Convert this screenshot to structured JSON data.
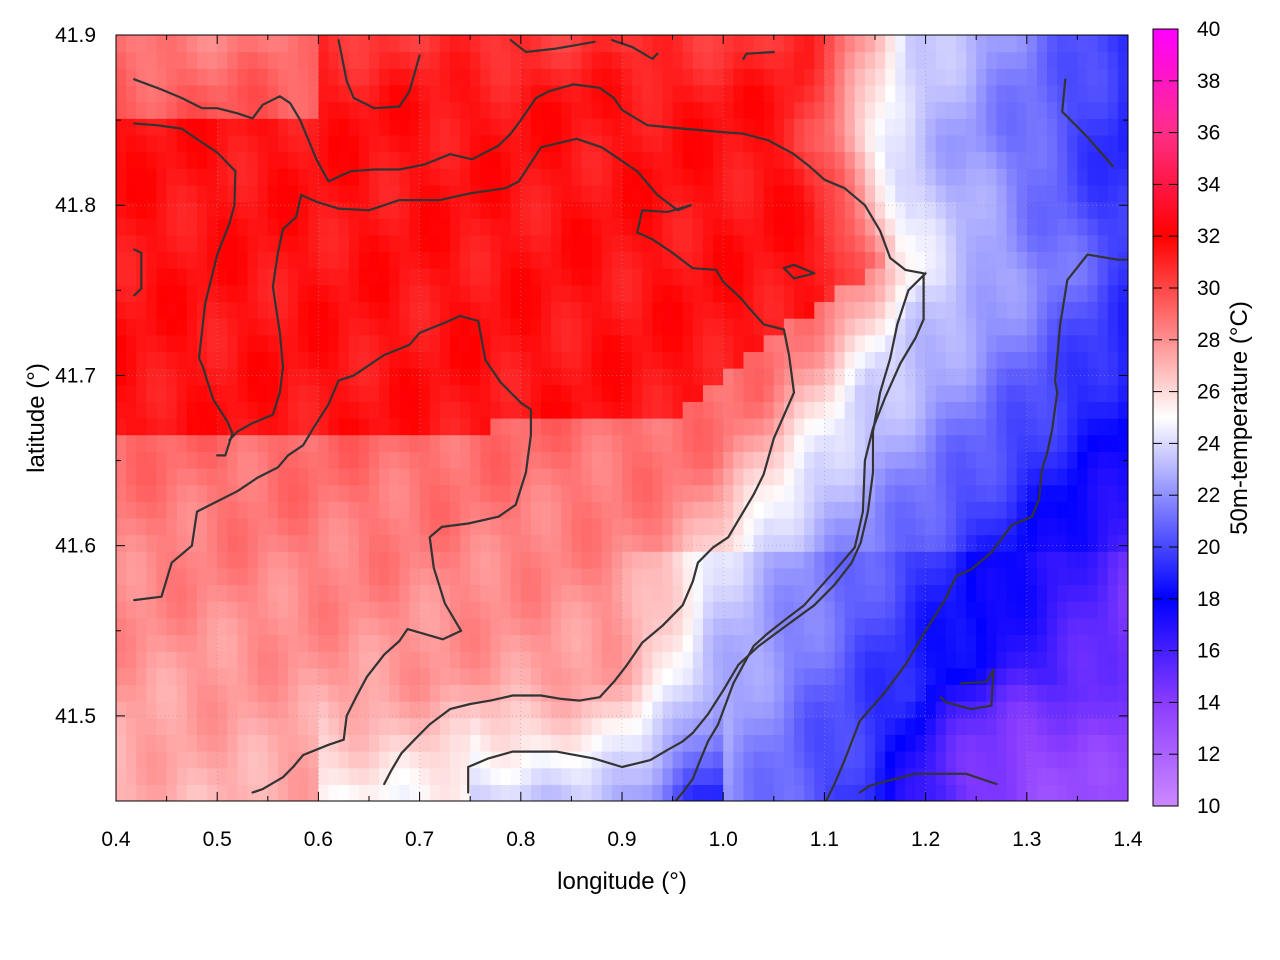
{
  "chart_data": {
    "type": "heatmap",
    "xlabel": "longitude (°)",
    "ylabel": "latitude (°)",
    "colorbar_label": "50m-temperature (°C)",
    "xlim": [
      0.4,
      1.4
    ],
    "ylim": [
      41.45,
      41.9
    ],
    "x_ticks": [
      0.4,
      0.5,
      0.6,
      0.7,
      0.8,
      0.9,
      1.0,
      1.1,
      1.2,
      1.3,
      1.4
    ],
    "x_tick_labels": [
      "0.4",
      "0.5",
      "0.6",
      "0.7",
      "0.8",
      "0.9",
      "1.0",
      "1.1",
      "1.2",
      "1.3",
      "1.4"
    ],
    "y_ticks": [
      41.5,
      41.6,
      41.7,
      41.8,
      41.9
    ],
    "y_tick_labels": [
      "41.5",
      "41.6",
      "41.7",
      "41.8",
      "41.9"
    ],
    "colorbar_range": [
      10,
      40
    ],
    "colorbar_ticks": [
      10,
      12,
      14,
      16,
      18,
      20,
      22,
      24,
      26,
      28,
      30,
      32,
      34,
      36,
      38,
      40
    ],
    "colorbar_tick_labels": [
      "10",
      "12",
      "14",
      "16",
      "18",
      "20",
      "22",
      "24",
      "26",
      "28",
      "30",
      "32",
      "34",
      "36",
      "38",
      "40"
    ],
    "colormap": [
      {
        "value": 10,
        "color": "#cc88ff"
      },
      {
        "value": 14,
        "color": "#8a3cff"
      },
      {
        "value": 18,
        "color": "#0000ff"
      },
      {
        "value": 21,
        "color": "#6a6aff"
      },
      {
        "value": 25,
        "color": "#ffffff"
      },
      {
        "value": 29,
        "color": "#ff6a6a"
      },
      {
        "value": 32,
        "color": "#ff0000"
      },
      {
        "value": 36,
        "color": "#ff2e88"
      },
      {
        "value": 40,
        "color": "#ff00ff"
      }
    ],
    "grid": true,
    "contour_color": "#333333",
    "contours": [
      [
        [
          0.418,
          41.874
        ],
        [
          0.445,
          41.868
        ],
        [
          0.465,
          41.863
        ],
        [
          0.485,
          41.857
        ],
        [
          0.5,
          41.857
        ],
        [
          0.52,
          41.854
        ],
        [
          0.535,
          41.851
        ],
        [
          0.545,
          41.859
        ],
        [
          0.555,
          41.862
        ],
        [
          0.562,
          41.864
        ],
        [
          0.572,
          41.86
        ],
        [
          0.582,
          41.85
        ],
        [
          0.598,
          41.827
        ],
        [
          0.61,
          41.814
        ],
        [
          0.632,
          41.82
        ],
        [
          0.655,
          41.821
        ],
        [
          0.68,
          41.821
        ],
        [
          0.705,
          41.824
        ],
        [
          0.73,
          41.83
        ],
        [
          0.752,
          41.827
        ],
        [
          0.778,
          41.835
        ],
        [
          0.79,
          41.842
        ],
        [
          0.8,
          41.85
        ],
        [
          0.815,
          41.863
        ],
        [
          0.828,
          41.867
        ],
        [
          0.852,
          41.871
        ],
        [
          0.878,
          41.869
        ],
        [
          0.892,
          41.863
        ],
        [
          0.9,
          41.856
        ],
        [
          0.925,
          41.847
        ],
        [
          0.96,
          41.845
        ],
        [
          0.998,
          41.843
        ],
        [
          1.02,
          41.842
        ],
        [
          1.045,
          41.838
        ],
        [
          1.07,
          41.83
        ],
        [
          1.085,
          41.823
        ],
        [
          1.1,
          41.815
        ],
        [
          1.12,
          41.81
        ],
        [
          1.14,
          41.8
        ],
        [
          1.155,
          41.785
        ],
        [
          1.165,
          41.769
        ],
        [
          1.18,
          41.762
        ],
        [
          1.198,
          41.76
        ],
        [
          1.198,
          41.733
        ],
        [
          1.19,
          41.722
        ],
        [
          1.175,
          41.707
        ],
        [
          1.16,
          41.687
        ],
        [
          1.148,
          41.669
        ],
        [
          1.14,
          41.65
        ],
        [
          1.138,
          41.62
        ],
        [
          1.13,
          41.599
        ],
        [
          1.11,
          41.585
        ],
        [
          1.095,
          41.575
        ],
        [
          1.08,
          41.565
        ],
        [
          1.06,
          41.556
        ],
        [
          1.043,
          41.548
        ],
        [
          1.03,
          41.541
        ],
        [
          1.02,
          41.53
        ],
        [
          1.01,
          41.519
        ],
        [
          1.0,
          41.503
        ],
        [
          0.995,
          41.495
        ],
        [
          0.985,
          41.485
        ],
        [
          0.978,
          41.475
        ],
        [
          0.97,
          41.463
        ],
        [
          0.96,
          41.455
        ],
        [
          0.953,
          41.45
        ]
      ],
      [
        [
          0.418,
          41.848
        ],
        [
          0.44,
          41.847
        ],
        [
          0.465,
          41.845
        ],
        [
          0.482,
          41.838
        ],
        [
          0.5,
          41.831
        ],
        [
          0.518,
          41.82
        ],
        [
          0.517,
          41.8
        ],
        [
          0.512,
          41.789
        ],
        [
          0.5,
          41.771
        ],
        [
          0.488,
          41.742
        ],
        [
          0.482,
          41.71
        ],
        [
          0.486,
          41.705
        ],
        [
          0.49,
          41.697
        ],
        [
          0.496,
          41.686
        ],
        [
          0.51,
          41.673
        ],
        [
          0.515,
          41.666
        ],
        [
          0.508,
          41.653
        ],
        [
          0.5,
          41.653
        ]
      ],
      [
        [
          0.62,
          41.897
        ],
        [
          0.628,
          41.873
        ],
        [
          0.635,
          41.863
        ],
        [
          0.655,
          41.857
        ],
        [
          0.68,
          41.858
        ],
        [
          0.69,
          41.867
        ],
        [
          0.7,
          41.888
        ]
      ],
      [
        [
          0.79,
          41.897
        ],
        [
          0.805,
          41.89
        ],
        [
          0.835,
          41.892
        ],
        [
          0.873,
          41.896
        ]
      ],
      [
        [
          0.89,
          41.897
        ],
        [
          0.91,
          41.893
        ],
        [
          0.93,
          41.886
        ],
        [
          0.935,
          41.889
        ]
      ],
      [
        [
          1.02,
          41.886
        ],
        [
          1.023,
          41.889
        ],
        [
          1.05,
          41.89
        ]
      ],
      [
        [
          1.338,
          41.874
        ],
        [
          1.335,
          41.855
        ],
        [
          1.36,
          41.84
        ],
        [
          1.385,
          41.823
        ]
      ],
      [
        [
          1.41,
          41.768
        ],
        [
          1.39,
          41.768
        ],
        [
          1.36,
          41.771
        ],
        [
          1.34,
          41.756
        ],
        [
          1.333,
          41.73
        ],
        [
          1.328,
          41.697
        ],
        [
          1.33,
          41.69
        ],
        [
          1.325,
          41.668
        ],
        [
          1.32,
          41.654
        ],
        [
          1.315,
          41.645
        ],
        [
          1.312,
          41.627
        ],
        [
          1.305,
          41.617
        ],
        [
          1.285,
          41.612
        ],
        [
          1.265,
          41.596
        ],
        [
          1.245,
          41.586
        ],
        [
          1.23,
          41.582
        ],
        [
          1.22,
          41.569
        ],
        [
          1.2,
          41.55
        ],
        [
          1.18,
          41.53
        ],
        [
          1.16,
          41.514
        ],
        [
          1.135,
          41.497
        ],
        [
          1.12,
          41.474
        ],
        [
          1.11,
          41.46
        ],
        [
          1.1,
          41.448
        ]
      ],
      [
        [
          1.27,
          41.46
        ],
        [
          1.24,
          41.466
        ],
        [
          1.19,
          41.466
        ],
        [
          1.17,
          41.463
        ],
        [
          1.145,
          41.459
        ],
        [
          1.135,
          41.455
        ]
      ],
      [
        [
          1.235,
          41.519
        ],
        [
          1.26,
          41.52
        ],
        [
          1.267,
          41.527
        ],
        [
          1.265,
          41.506
        ],
        [
          1.245,
          41.504
        ],
        [
          1.22,
          41.508
        ],
        [
          1.215,
          41.511
        ]
      ],
      [
        [
          0.418,
          41.774
        ],
        [
          0.425,
          41.772
        ],
        [
          0.425,
          41.751
        ],
        [
          0.418,
          41.747
        ]
      ],
      [
        [
          0.583,
          41.806
        ],
        [
          0.578,
          41.793
        ],
        [
          0.565,
          41.786
        ],
        [
          0.56,
          41.772
        ],
        [
          0.555,
          41.752
        ],
        [
          0.562,
          41.725
        ],
        [
          0.565,
          41.705
        ],
        [
          0.562,
          41.69
        ],
        [
          0.555,
          41.677
        ],
        [
          0.535,
          41.672
        ],
        [
          0.52,
          41.667
        ],
        [
          0.512,
          41.662
        ]
      ],
      [
        [
          0.855,
          41.839
        ],
        [
          0.82,
          41.834
        ],
        [
          0.798,
          41.814
        ],
        [
          0.785,
          41.81
        ],
        [
          0.75,
          41.807
        ],
        [
          0.72,
          41.803
        ],
        [
          0.68,
          41.803
        ],
        [
          0.65,
          41.797
        ],
        [
          0.62,
          41.798
        ],
        [
          0.598,
          41.802
        ],
        [
          0.583,
          41.806
        ]
      ],
      [
        [
          0.855,
          41.839
        ],
        [
          0.88,
          41.834
        ],
        [
          0.915,
          41.82
        ],
        [
          0.935,
          41.806
        ],
        [
          0.955,
          41.797
        ],
        [
          0.968,
          41.8
        ],
        [
          0.945,
          41.796
        ],
        [
          0.92,
          41.797
        ],
        [
          0.915,
          41.784
        ],
        [
          0.93,
          41.78
        ],
        [
          0.95,
          41.772
        ],
        [
          0.97,
          41.763
        ],
        [
          0.993,
          41.762
        ],
        [
          1.0,
          41.755
        ],
        [
          1.018,
          41.745
        ],
        [
          1.025,
          41.74
        ],
        [
          1.04,
          41.73
        ],
        [
          1.06,
          41.727
        ],
        [
          1.065,
          41.712
        ],
        [
          1.07,
          41.69
        ],
        [
          1.05,
          41.663
        ],
        [
          1.04,
          41.642
        ],
        [
          1.03,
          41.63
        ],
        [
          1.015,
          41.615
        ],
        [
          1.005,
          41.605
        ],
        [
          0.99,
          41.599
        ],
        [
          0.975,
          41.59
        ],
        [
          0.97,
          41.579
        ],
        [
          0.96,
          41.565
        ],
        [
          0.94,
          41.553
        ],
        [
          0.92,
          41.543
        ],
        [
          0.905,
          41.53
        ],
        [
          0.892,
          41.52
        ],
        [
          0.878,
          41.511
        ],
        [
          0.858,
          41.509
        ],
        [
          0.84,
          41.51
        ],
        [
          0.82,
          41.512
        ],
        [
          0.792,
          41.512
        ],
        [
          0.77,
          41.509
        ],
        [
          0.75,
          41.507
        ],
        [
          0.73,
          41.504
        ],
        [
          0.71,
          41.495
        ],
        [
          0.695,
          41.486
        ],
        [
          0.682,
          41.478
        ],
        [
          0.672,
          41.468
        ],
        [
          0.665,
          41.46
        ]
      ],
      [
        [
          1.06,
          41.763
        ],
        [
          1.07,
          41.765
        ],
        [
          1.09,
          41.76
        ],
        [
          1.07,
          41.757
        ],
        [
          1.06,
          41.763
        ]
      ],
      [
        [
          0.418,
          41.568
        ],
        [
          0.445,
          41.57
        ],
        [
          0.455,
          41.59
        ],
        [
          0.475,
          41.6
        ],
        [
          0.48,
          41.62
        ],
        [
          0.5,
          41.626
        ],
        [
          0.52,
          41.632
        ],
        [
          0.54,
          41.64
        ],
        [
          0.56,
          41.646
        ],
        [
          0.57,
          41.653
        ],
        [
          0.585,
          41.659
        ],
        [
          0.595,
          41.669
        ],
        [
          0.61,
          41.683
        ],
        [
          0.62,
          41.697
        ],
        [
          0.635,
          41.7
        ],
        [
          0.665,
          41.712
        ],
        [
          0.69,
          41.718
        ],
        [
          0.7,
          41.725
        ],
        [
          0.725,
          41.731
        ],
        [
          0.74,
          41.735
        ],
        [
          0.758,
          41.732
        ],
        [
          0.765,
          41.709
        ],
        [
          0.78,
          41.696
        ],
        [
          0.8,
          41.684
        ],
        [
          0.81,
          41.68
        ],
        [
          0.81,
          41.665
        ],
        [
          0.805,
          41.643
        ],
        [
          0.795,
          41.624
        ],
        [
          0.778,
          41.617
        ],
        [
          0.748,
          41.613
        ],
        [
          0.722,
          41.611
        ],
        [
          0.71,
          41.605
        ],
        [
          0.714,
          41.587
        ],
        [
          0.725,
          41.566
        ],
        [
          0.741,
          41.55
        ],
        [
          0.723,
          41.545
        ],
        [
          0.688,
          41.551
        ],
        [
          0.68,
          41.544
        ],
        [
          0.665,
          41.536
        ],
        [
          0.648,
          41.523
        ],
        [
          0.638,
          41.512
        ],
        [
          0.628,
          41.5
        ],
        [
          0.625,
          41.486
        ],
        [
          0.61,
          41.483
        ],
        [
          0.585,
          41.477
        ],
        [
          0.575,
          41.47
        ],
        [
          0.565,
          41.464
        ],
        [
          0.545,
          41.457
        ],
        [
          0.535,
          41.455
        ]
      ],
      [
        [
          0.748,
          41.455
        ],
        [
          0.748,
          41.47
        ],
        [
          0.768,
          41.475
        ],
        [
          0.792,
          41.479
        ],
        [
          0.835,
          41.479
        ],
        [
          0.872,
          41.475
        ],
        [
          0.9,
          41.47
        ],
        [
          0.928,
          41.474
        ],
        [
          0.945,
          41.48
        ],
        [
          0.96,
          41.485
        ],
        [
          0.97,
          41.49
        ],
        [
          0.985,
          41.501
        ],
        [
          1.0,
          41.515
        ],
        [
          1.015,
          41.53
        ],
        [
          1.035,
          41.541
        ],
        [
          1.06,
          41.552
        ],
        [
          1.09,
          41.565
        ],
        [
          1.11,
          41.577
        ],
        [
          1.127,
          41.59
        ],
        [
          1.136,
          41.602
        ],
        [
          1.143,
          41.62
        ],
        [
          1.148,
          41.643
        ],
        [
          1.148,
          41.667
        ],
        [
          1.155,
          41.69
        ],
        [
          1.165,
          41.71
        ],
        [
          1.172,
          41.73
        ],
        [
          1.183,
          41.75
        ],
        [
          1.2,
          41.76
        ]
      ]
    ]
  }
}
